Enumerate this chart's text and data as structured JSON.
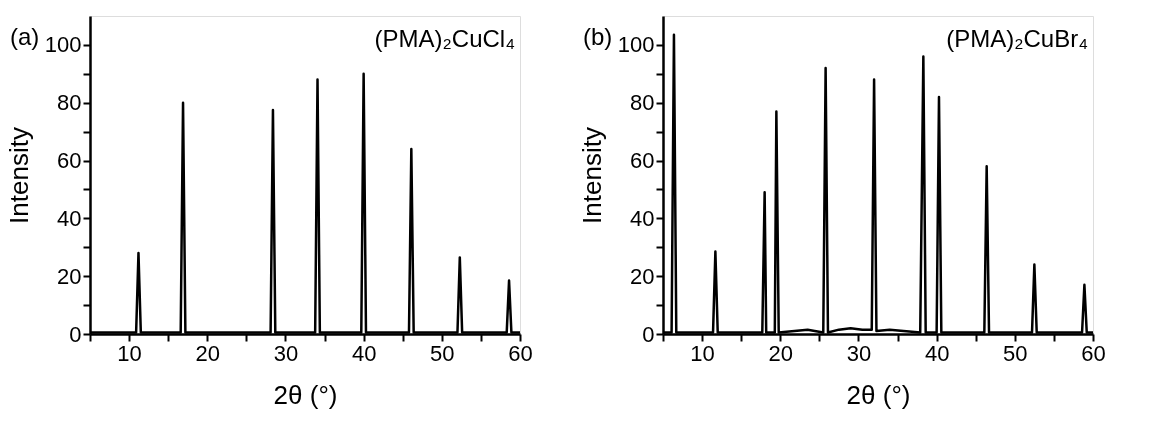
{
  "chart_data": [
    {
      "type": "line",
      "xlabel": "2θ (°)",
      "ylabel": "Intensity",
      "annotations": [
        "(a)",
        "(PMA)₂CuCl₄"
      ],
      "xlim": [
        5,
        60
      ],
      "ylim": [
        0,
        110
      ],
      "xticks": [
        {
          "value": 5,
          "label": null
        },
        10,
        {
          "value": 15,
          "label": null
        },
        20,
        {
          "value": 25,
          "label": null
        },
        30,
        {
          "value": 35,
          "label": null
        },
        40,
        {
          "value": 45,
          "label": null
        },
        50,
        {
          "value": 55,
          "label": null
        },
        60
      ],
      "yticks": [
        0,
        {
          "value": 10,
          "label": null
        },
        20,
        {
          "value": 30,
          "label": null
        },
        40,
        {
          "value": 50,
          "label": null
        },
        60,
        {
          "value": 70,
          "label": null
        },
        80,
        {
          "value": 90,
          "label": null
        },
        100
      ],
      "grid": false,
      "marker": "none",
      "line_style": "solid",
      "series": [
        {
          "color": "#000000",
          "x": [
            5,
            10.9,
            11.2,
            11.5,
            16.6,
            16.9,
            17.2,
            28.1,
            28.4,
            28.7,
            33.8,
            34.1,
            34.4,
            39.7,
            40.0,
            40.3,
            45.8,
            46.1,
            46.4,
            52.0,
            52.3,
            52.6,
            58.3,
            58.6,
            58.9,
            60
          ],
          "values": [
            0.5,
            0.5,
            28,
            0.5,
            0.5,
            80,
            0.5,
            0.5,
            77.5,
            0.5,
            0.5,
            88,
            0.5,
            0.5,
            90,
            0.5,
            0.5,
            64,
            0.5,
            0.5,
            26.5,
            0.5,
            0.5,
            18.5,
            0.5,
            0.5
          ]
        }
      ]
    },
    {
      "type": "line",
      "xlabel": "2θ (°)",
      "ylabel": "Intensity",
      "annotations": [
        "(b)",
        "(PMA)₂CuBr₄"
      ],
      "xlim": [
        5,
        60
      ],
      "ylim": [
        0,
        110
      ],
      "xticks": [
        {
          "value": 5,
          "label": null
        },
        10,
        {
          "value": 15,
          "label": null
        },
        20,
        {
          "value": 25,
          "label": null
        },
        30,
        {
          "value": 35,
          "label": null
        },
        40,
        {
          "value": 45,
          "label": null
        },
        50,
        {
          "value": 55,
          "label": null
        },
        60
      ],
      "yticks": [
        0,
        {
          "value": 10,
          "label": null
        },
        20,
        {
          "value": 30,
          "label": null
        },
        40,
        {
          "value": 50,
          "label": null
        },
        60,
        {
          "value": 70,
          "label": null
        },
        80,
        {
          "value": 90,
          "label": null
        },
        100
      ],
      "grid": false,
      "marker": "none",
      "line_style": "solid",
      "series": [
        {
          "color": "#000000",
          "x": [
            5,
            6.1,
            6.4,
            6.7,
            11.4,
            11.7,
            12.0,
            17.7,
            18.0,
            18.2,
            19.3,
            19.5,
            19.8,
            23.5,
            25.5,
            25.8,
            26.1,
            27.5,
            29,
            30.5,
            31.7,
            32.0,
            32.3,
            34,
            37.9,
            38.3,
            38.6,
            40.0,
            40.3,
            40.6,
            46.1,
            46.4,
            46.7,
            52.2,
            52.5,
            52.8,
            58.6,
            58.9,
            59.2,
            60
          ],
          "values": [
            0.5,
            0.5,
            103.5,
            0.5,
            0.5,
            28.5,
            0.5,
            0.5,
            49,
            0.5,
            0.5,
            77,
            0.5,
            1.5,
            0.5,
            92,
            0.5,
            1.5,
            2,
            1.5,
            1.5,
            88,
            1,
            1.5,
            0.5,
            96,
            0.5,
            0.5,
            82,
            0.5,
            0.5,
            58,
            0.5,
            0.5,
            24,
            0.5,
            0.5,
            17,
            0.5,
            0.5
          ]
        }
      ]
    }
  ]
}
